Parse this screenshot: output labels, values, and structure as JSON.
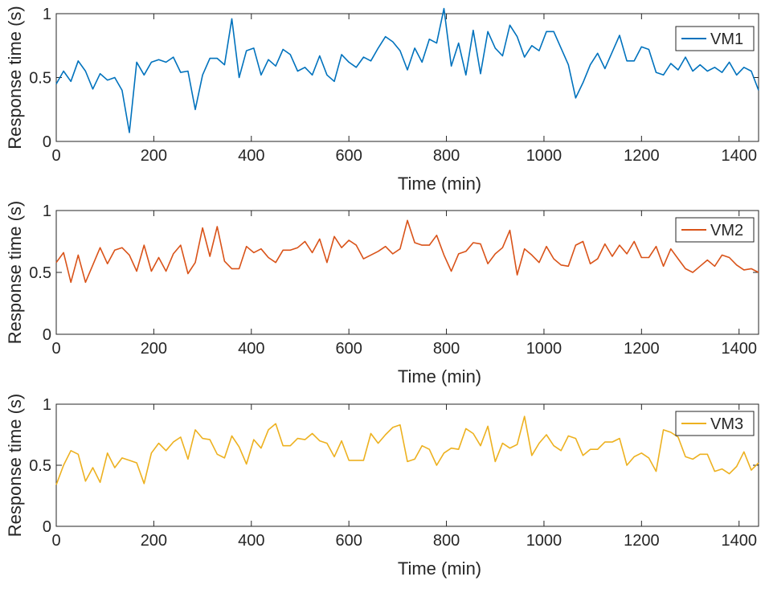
{
  "colors": {
    "VM1": "#0072BD",
    "VM2": "#D95319",
    "VM3": "#EDB120"
  },
  "chart_data": [
    {
      "type": "line",
      "xlabel": "Time (min)",
      "ylabel": "Response time (s)",
      "xlim": [
        0,
        1440
      ],
      "ylim": [
        0,
        1
      ],
      "xticks": [
        "0",
        "200",
        "400",
        "600",
        "800",
        "1000",
        "1200",
        "1400"
      ],
      "yticks": [
        "0",
        "0.5",
        "1"
      ],
      "grid": false,
      "legend": "top-right",
      "series": [
        {
          "name": "VM1",
          "x": [
            0,
            15,
            30,
            45,
            60,
            75,
            90,
            105,
            120,
            135,
            150,
            165,
            180,
            195,
            210,
            225,
            240,
            255,
            270,
            285,
            300,
            315,
            330,
            345,
            360,
            375,
            390,
            405,
            420,
            435,
            450,
            465,
            480,
            495,
            510,
            525,
            540,
            555,
            570,
            585,
            600,
            615,
            630,
            645,
            660,
            675,
            690,
            705,
            720,
            735,
            750,
            765,
            780,
            795,
            810,
            825,
            840,
            855,
            870,
            885,
            900,
            915,
            930,
            945,
            960,
            975,
            990,
            1005,
            1020,
            1035,
            1050,
            1065,
            1080,
            1095,
            1110,
            1125,
            1140,
            1155,
            1170,
            1185,
            1200,
            1215,
            1230,
            1245,
            1260,
            1275,
            1290,
            1305,
            1320,
            1335,
            1350,
            1365,
            1380,
            1395,
            1410,
            1425,
            1440
          ],
          "y": [
            0.45,
            0.55,
            0.47,
            0.63,
            0.55,
            0.41,
            0.53,
            0.48,
            0.5,
            0.4,
            0.07,
            0.62,
            0.52,
            0.62,
            0.64,
            0.62,
            0.66,
            0.54,
            0.55,
            0.25,
            0.52,
            0.65,
            0.65,
            0.6,
            0.96,
            0.5,
            0.71,
            0.73,
            0.52,
            0.64,
            0.59,
            0.72,
            0.68,
            0.55,
            0.58,
            0.52,
            0.67,
            0.52,
            0.47,
            0.68,
            0.62,
            0.58,
            0.66,
            0.63,
            0.73,
            0.82,
            0.78,
            0.71,
            0.56,
            0.73,
            0.62,
            0.8,
            0.77,
            1.04,
            0.59,
            0.77,
            0.52,
            0.87,
            0.53,
            0.86,
            0.73,
            0.67,
            0.91,
            0.82,
            0.66,
            0.75,
            0.71,
            0.86,
            0.86,
            0.73,
            0.6,
            0.34,
            0.46,
            0.6,
            0.69,
            0.57,
            0.7,
            0.83,
            0.63,
            0.63,
            0.74,
            0.72,
            0.54,
            0.52,
            0.61,
            0.56,
            0.66,
            0.55,
            0.6,
            0.55,
            0.58,
            0.54,
            0.62,
            0.52,
            0.58,
            0.55,
            0.4
          ]
        }
      ]
    },
    {
      "type": "line",
      "xlabel": "Time (min)",
      "ylabel": "Response time (s)",
      "xlim": [
        0,
        1440
      ],
      "ylim": [
        0,
        1
      ],
      "xticks": [
        "0",
        "200",
        "400",
        "600",
        "800",
        "1000",
        "1200",
        "1400"
      ],
      "yticks": [
        "0",
        "0.5",
        "1"
      ],
      "grid": false,
      "legend": "top-right",
      "series": [
        {
          "name": "VM2",
          "x": [
            0,
            15,
            30,
            45,
            60,
            75,
            90,
            105,
            120,
            135,
            150,
            165,
            180,
            195,
            210,
            225,
            240,
            255,
            270,
            285,
            300,
            315,
            330,
            345,
            360,
            375,
            390,
            405,
            420,
            435,
            450,
            465,
            480,
            495,
            510,
            525,
            540,
            555,
            570,
            585,
            600,
            615,
            630,
            645,
            660,
            675,
            690,
            705,
            720,
            735,
            750,
            765,
            780,
            795,
            810,
            825,
            840,
            855,
            870,
            885,
            900,
            915,
            930,
            945,
            960,
            975,
            990,
            1005,
            1020,
            1035,
            1050,
            1065,
            1080,
            1095,
            1110,
            1125,
            1140,
            1155,
            1170,
            1185,
            1200,
            1215,
            1230,
            1245,
            1260,
            1275,
            1290,
            1305,
            1320,
            1335,
            1350,
            1365,
            1380,
            1395,
            1410,
            1425,
            1440
          ],
          "y": [
            0.58,
            0.66,
            0.42,
            0.64,
            0.42,
            0.56,
            0.7,
            0.57,
            0.68,
            0.7,
            0.64,
            0.51,
            0.72,
            0.51,
            0.62,
            0.51,
            0.65,
            0.72,
            0.49,
            0.58,
            0.86,
            0.63,
            0.87,
            0.59,
            0.53,
            0.53,
            0.71,
            0.66,
            0.69,
            0.62,
            0.58,
            0.68,
            0.68,
            0.7,
            0.75,
            0.66,
            0.77,
            0.58,
            0.79,
            0.7,
            0.76,
            0.72,
            0.61,
            0.64,
            0.67,
            0.71,
            0.65,
            0.69,
            0.92,
            0.74,
            0.72,
            0.72,
            0.8,
            0.64,
            0.51,
            0.65,
            0.67,
            0.74,
            0.73,
            0.57,
            0.65,
            0.7,
            0.84,
            0.48,
            0.69,
            0.64,
            0.58,
            0.71,
            0.61,
            0.56,
            0.55,
            0.72,
            0.75,
            0.57,
            0.61,
            0.73,
            0.63,
            0.72,
            0.65,
            0.75,
            0.62,
            0.62,
            0.71,
            0.55,
            0.69,
            0.61,
            0.53,
            0.5,
            0.55,
            0.6,
            0.55,
            0.64,
            0.62,
            0.56,
            0.52,
            0.53,
            0.5
          ]
        }
      ]
    },
    {
      "type": "line",
      "xlabel": "Time (min)",
      "ylabel": "Response time (s)",
      "xlim": [
        0,
        1440
      ],
      "ylim": [
        0,
        1
      ],
      "xticks": [
        "0",
        "200",
        "400",
        "600",
        "800",
        "1000",
        "1200",
        "1400"
      ],
      "yticks": [
        "0",
        "0.5",
        "1"
      ],
      "grid": false,
      "legend": "top-right",
      "series": [
        {
          "name": "VM3",
          "x": [
            0,
            15,
            30,
            45,
            60,
            75,
            90,
            105,
            120,
            135,
            150,
            165,
            180,
            195,
            210,
            225,
            240,
            255,
            270,
            285,
            300,
            315,
            330,
            345,
            360,
            375,
            390,
            405,
            420,
            435,
            450,
            465,
            480,
            495,
            510,
            525,
            540,
            555,
            570,
            585,
            600,
            615,
            630,
            645,
            660,
            675,
            690,
            705,
            720,
            735,
            750,
            765,
            780,
            795,
            810,
            825,
            840,
            855,
            870,
            885,
            900,
            915,
            930,
            945,
            960,
            975,
            990,
            1005,
            1020,
            1035,
            1050,
            1065,
            1080,
            1095,
            1110,
            1125,
            1140,
            1155,
            1170,
            1185,
            1200,
            1215,
            1230,
            1245,
            1260,
            1275,
            1290,
            1305,
            1320,
            1335,
            1350,
            1365,
            1380,
            1395,
            1410,
            1425,
            1440
          ],
          "y": [
            0.34,
            0.5,
            0.62,
            0.59,
            0.37,
            0.48,
            0.36,
            0.6,
            0.48,
            0.56,
            0.54,
            0.52,
            0.35,
            0.6,
            0.68,
            0.62,
            0.69,
            0.73,
            0.55,
            0.79,
            0.72,
            0.71,
            0.59,
            0.56,
            0.74,
            0.65,
            0.51,
            0.71,
            0.64,
            0.79,
            0.84,
            0.66,
            0.66,
            0.72,
            0.71,
            0.76,
            0.7,
            0.68,
            0.57,
            0.7,
            0.54,
            0.54,
            0.54,
            0.76,
            0.68,
            0.75,
            0.81,
            0.83,
            0.53,
            0.55,
            0.66,
            0.63,
            0.5,
            0.6,
            0.64,
            0.63,
            0.8,
            0.76,
            0.66,
            0.82,
            0.53,
            0.68,
            0.64,
            0.67,
            0.9,
            0.58,
            0.68,
            0.75,
            0.66,
            0.62,
            0.74,
            0.72,
            0.58,
            0.63,
            0.63,
            0.69,
            0.69,
            0.72,
            0.5,
            0.57,
            0.6,
            0.56,
            0.45,
            0.79,
            0.77,
            0.73,
            0.57,
            0.55,
            0.59,
            0.59,
            0.45,
            0.47,
            0.43,
            0.49,
            0.61,
            0.46,
            0.52
          ]
        }
      ]
    }
  ]
}
